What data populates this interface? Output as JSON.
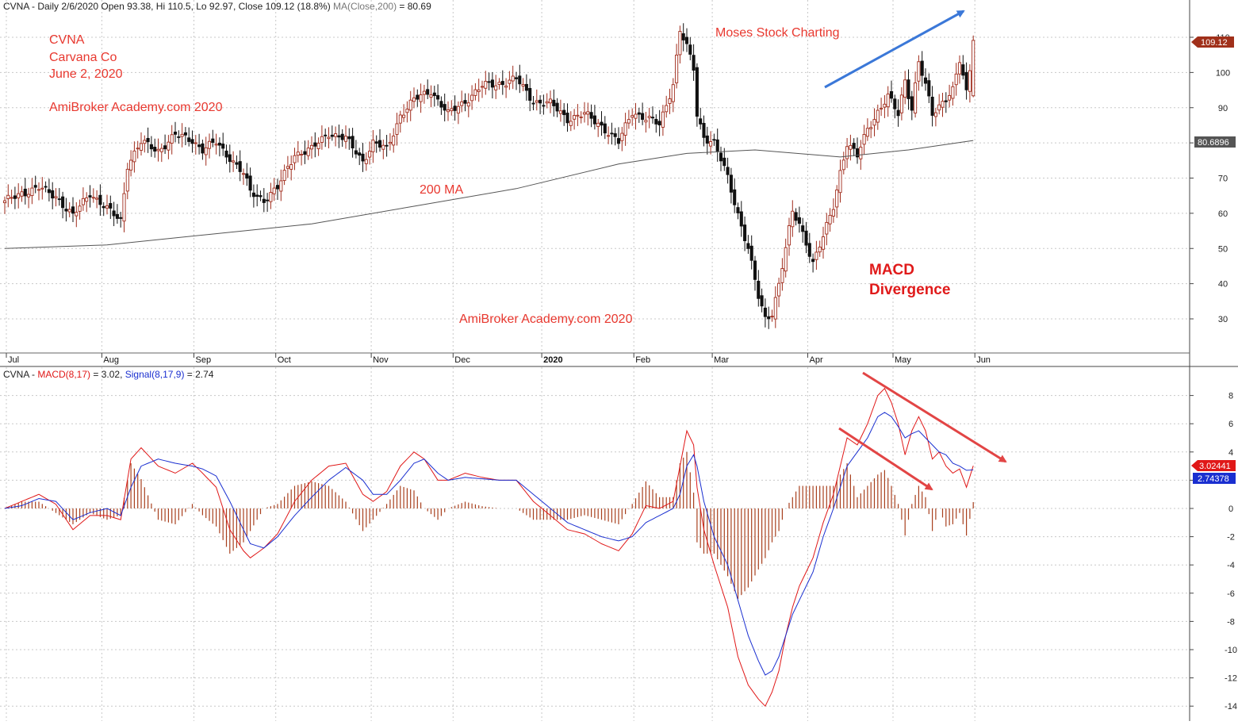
{
  "colors": {
    "up": "#a02c1c",
    "down": "#111111",
    "ma": "#555555",
    "macd": "#e01818",
    "signal": "#1a2fd0",
    "hist": "#a8401e",
    "annotation_red": "#e8382f",
    "arrow_blue": "#3b78d8",
    "arrow_red": "#e24545",
    "grid": "#c8c8c8"
  },
  "header": {
    "price_title": "CVNA - Daily 2/6/2020 Open 93.38, Hi 110.5, Lo 92.97, Close 109.12 (18.8%)",
    "ma_part": " MA(Close,200)",
    "ma_value": " = 80.69",
    "macd_prefix": "CVNA - ",
    "macd_label": "MACD(8,17)",
    "macd_value": " = 3.02, ",
    "signal_label": "Signal(8,17,9)",
    "signal_value": " = 2.74"
  },
  "annotations": {
    "ticker": "CVNA",
    "company": "Carvana Co",
    "date": "June 2, 2020",
    "site_top": "AmiBroker Academy.com  2020",
    "moses": "Moses Stock Charting",
    "ma_label": "200 MA",
    "macd_title": "MACD",
    "divergence": "Divergence",
    "site_bottom": "AmiBroker Academy.com  2020"
  },
  "price_badges": {
    "close": "109.12",
    "ma": "80.6896"
  },
  "macd_badges": {
    "macd": "3.02441",
    "signal": "2.74378"
  },
  "chart_data": [
    {
      "type": "candlestick",
      "title": "CVNA - Daily 2/6/2020",
      "x_months": [
        "Jul",
        "Aug",
        "Sep",
        "Oct",
        "Nov",
        "Dec",
        "2020",
        "Feb",
        "Mar",
        "Apr",
        "May",
        "Jun"
      ],
      "y_ticks": [
        30,
        40,
        50,
        60,
        70,
        80,
        90,
        100,
        110
      ],
      "ylim": [
        20.5,
        115.5
      ],
      "grid": true,
      "close_path": [
        [
          0,
          63
        ],
        [
          5,
          66
        ],
        [
          10,
          67
        ],
        [
          15,
          65
        ],
        [
          20,
          59
        ],
        [
          25,
          66
        ],
        [
          30,
          61
        ],
        [
          34,
          58
        ],
        [
          36,
          74
        ],
        [
          40,
          80
        ],
        [
          45,
          78
        ],
        [
          50,
          82
        ],
        [
          55,
          81
        ],
        [
          58,
          78
        ],
        [
          62,
          80
        ],
        [
          66,
          76
        ],
        [
          70,
          71
        ],
        [
          72,
          66
        ],
        [
          76,
          64
        ],
        [
          80,
          67
        ],
        [
          85,
          77
        ],
        [
          90,
          78
        ],
        [
          95,
          83
        ],
        [
          100,
          81
        ],
        [
          105,
          75
        ],
        [
          108,
          80
        ],
        [
          112,
          78
        ],
        [
          116,
          88
        ],
        [
          120,
          92
        ],
        [
          125,
          95
        ],
        [
          130,
          88
        ],
        [
          135,
          92
        ],
        [
          140,
          96
        ],
        [
          145,
          97
        ],
        [
          150,
          98
        ],
        [
          155,
          92
        ],
        [
          160,
          91
        ],
        [
          165,
          87
        ],
        [
          170,
          88
        ],
        [
          175,
          85
        ],
        [
          180,
          80
        ],
        [
          184,
          89
        ],
        [
          188,
          87
        ],
        [
          192,
          85
        ],
        [
          196,
          97
        ],
        [
          198,
          112
        ],
        [
          200,
          107
        ],
        [
          202,
          101
        ],
        [
          203,
          88
        ],
        [
          205,
          82
        ],
        [
          208,
          80
        ],
        [
          212,
          70
        ],
        [
          215,
          60
        ],
        [
          218,
          50
        ],
        [
          221,
          36
        ],
        [
          223,
          30
        ],
        [
          225,
          32
        ],
        [
          227,
          40
        ],
        [
          229,
          50
        ],
        [
          231,
          60
        ],
        [
          233,
          57
        ],
        [
          235,
          52
        ],
        [
          237,
          46
        ],
        [
          240,
          53
        ],
        [
          243,
          62
        ],
        [
          245,
          72
        ],
        [
          247,
          80
        ],
        [
          250,
          76
        ],
        [
          253,
          84
        ],
        [
          256,
          89
        ],
        [
          259,
          93
        ],
        [
          262,
          88
        ],
        [
          264,
          98
        ],
        [
          266,
          90
        ],
        [
          268,
          103
        ],
        [
          270,
          96
        ],
        [
          272,
          88
        ],
        [
          275,
          92
        ],
        [
          278,
          95
        ],
        [
          280,
          103
        ],
        [
          282,
          94
        ],
        [
          284,
          108
        ]
      ],
      "ma200_path": [
        [
          0,
          50
        ],
        [
          30,
          51
        ],
        [
          60,
          54
        ],
        [
          90,
          57
        ],
        [
          120,
          62
        ],
        [
          150,
          67
        ],
        [
          180,
          74
        ],
        [
          200,
          77
        ],
        [
          220,
          78
        ],
        [
          245,
          76
        ],
        [
          265,
          78
        ],
        [
          284,
          80.69
        ]
      ],
      "series": [
        {
          "name": "MA(Close,200)",
          "last": 80.69
        }
      ],
      "ohlc_last": {
        "date": "2/6/2020",
        "open": 93.38,
        "high": 110.5,
        "low": 92.97,
        "close": 109.12,
        "change_pct": 18.8
      }
    },
    {
      "type": "line",
      "title": "MACD(8,17)",
      "y_ticks": [
        -14,
        -12,
        -10,
        -8,
        -6,
        -4,
        -2,
        0,
        2,
        4,
        6,
        8
      ],
      "ylim": [
        -14.5,
        9.5
      ],
      "grid": true,
      "series": [
        {
          "name": "MACD(8,17)",
          "last": 3.02,
          "points": [
            [
              0,
              0
            ],
            [
              5,
              0.5
            ],
            [
              10,
              1.0
            ],
            [
              15,
              0.3
            ],
            [
              20,
              -1.5
            ],
            [
              25,
              -0.5
            ],
            [
              30,
              -0.5
            ],
            [
              34,
              -0.8
            ],
            [
              37,
              3.5
            ],
            [
              40,
              4.3
            ],
            [
              45,
              3.0
            ],
            [
              50,
              2.5
            ],
            [
              55,
              3.2
            ],
            [
              58,
              2.5
            ],
            [
              62,
              1.5
            ],
            [
              66,
              -1.5
            ],
            [
              70,
              -3.0
            ],
            [
              72,
              -3.5
            ],
            [
              76,
              -2.8
            ],
            [
              80,
              -1.8
            ],
            [
              85,
              0.5
            ],
            [
              90,
              2.0
            ],
            [
              95,
              3.0
            ],
            [
              100,
              3.2
            ],
            [
              105,
              1.0
            ],
            [
              108,
              0.5
            ],
            [
              112,
              1.2
            ],
            [
              116,
              3.0
            ],
            [
              120,
              4.0
            ],
            [
              123,
              3.5
            ],
            [
              127,
              2.0
            ],
            [
              130,
              2.0
            ],
            [
              135,
              2.5
            ],
            [
              140,
              2.2
            ],
            [
              145,
              2.0
            ],
            [
              150,
              2.0
            ],
            [
              155,
              0.5
            ],
            [
              160,
              -0.5
            ],
            [
              165,
              -1.5
            ],
            [
              170,
              -1.8
            ],
            [
              175,
              -2.5
            ],
            [
              180,
              -3.0
            ],
            [
              184,
              -1.8
            ],
            [
              188,
              0.2
            ],
            [
              192,
              0.0
            ],
            [
              196,
              0.5
            ],
            [
              198,
              3.0
            ],
            [
              200,
              5.5
            ],
            [
              202,
              4.5
            ],
            [
              203,
              1.5
            ],
            [
              205,
              -1.5
            ],
            [
              208,
              -4.0
            ],
            [
              212,
              -7.0
            ],
            [
              215,
              -10.5
            ],
            [
              218,
              -12.5
            ],
            [
              221,
              -13.5
            ],
            [
              223,
              -14.0
            ],
            [
              225,
              -13.0
            ],
            [
              227,
              -11.5
            ],
            [
              229,
              -9.0
            ],
            [
              231,
              -7.0
            ],
            [
              233,
              -5.5
            ],
            [
              235,
              -4.5
            ],
            [
              237,
              -3.5
            ],
            [
              240,
              -1.0
            ],
            [
              243,
              1.0
            ],
            [
              245,
              3.0
            ],
            [
              247,
              5.0
            ],
            [
              250,
              4.5
            ],
            [
              253,
              6.0
            ],
            [
              256,
              8.0
            ],
            [
              258,
              8.5
            ],
            [
              260,
              7.5
            ],
            [
              262,
              6.0
            ],
            [
              264,
              3.8
            ],
            [
              266,
              5.5
            ],
            [
              268,
              6.5
            ],
            [
              270,
              5.5
            ],
            [
              272,
              3.5
            ],
            [
              274,
              4.0
            ],
            [
              276,
              3.0
            ],
            [
              278,
              2.5
            ],
            [
              280,
              2.8
            ],
            [
              282,
              1.5
            ],
            [
              284,
              3.02
            ]
          ]
        },
        {
          "name": "Signal(8,17,9)",
          "last": 2.74,
          "points": [
            [
              0,
              0
            ],
            [
              5,
              0.2
            ],
            [
              10,
              0.7
            ],
            [
              15,
              0.5
            ],
            [
              20,
              -0.8
            ],
            [
              25,
              -0.3
            ],
            [
              30,
              0.0
            ],
            [
              34,
              -0.5
            ],
            [
              37,
              1.5
            ],
            [
              40,
              3.0
            ],
            [
              45,
              3.5
            ],
            [
              50,
              3.2
            ],
            [
              55,
              3.0
            ],
            [
              58,
              2.8
            ],
            [
              62,
              2.3
            ],
            [
              66,
              0.5
            ],
            [
              70,
              -1.5
            ],
            [
              72,
              -2.5
            ],
            [
              76,
              -2.8
            ],
            [
              80,
              -2.0
            ],
            [
              85,
              -0.5
            ],
            [
              90,
              0.8
            ],
            [
              95,
              2.0
            ],
            [
              100,
              2.9
            ],
            [
              105,
              2.0
            ],
            [
              108,
              1.0
            ],
            [
              112,
              1.0
            ],
            [
              116,
              2.0
            ],
            [
              120,
              3.2
            ],
            [
              123,
              3.5
            ],
            [
              127,
              2.5
            ],
            [
              130,
              2.0
            ],
            [
              135,
              2.2
            ],
            [
              140,
              2.1
            ],
            [
              145,
              2.0
            ],
            [
              150,
              2.0
            ],
            [
              155,
              1.0
            ],
            [
              160,
              0.0
            ],
            [
              165,
              -1.0
            ],
            [
              170,
              -1.5
            ],
            [
              175,
              -2.0
            ],
            [
              180,
              -2.3
            ],
            [
              184,
              -2.0
            ],
            [
              188,
              -1.0
            ],
            [
              192,
              -0.5
            ],
            [
              196,
              0.0
            ],
            [
              198,
              1.0
            ],
            [
              200,
              3.0
            ],
            [
              202,
              3.8
            ],
            [
              203,
              3.0
            ],
            [
              205,
              0.5
            ],
            [
              208,
              -2.0
            ],
            [
              212,
              -4.0
            ],
            [
              215,
              -6.5
            ],
            [
              218,
              -9.0
            ],
            [
              221,
              -10.8
            ],
            [
              223,
              -11.8
            ],
            [
              225,
              -11.5
            ],
            [
              227,
              -10.5
            ],
            [
              229,
              -9.0
            ],
            [
              231,
              -7.5
            ],
            [
              233,
              -6.5
            ],
            [
              235,
              -5.5
            ],
            [
              237,
              -4.5
            ],
            [
              240,
              -2.0
            ],
            [
              243,
              0.0
            ],
            [
              245,
              1.5
            ],
            [
              247,
              3.0
            ],
            [
              250,
              4.0
            ],
            [
              253,
              5.0
            ],
            [
              256,
              6.5
            ],
            [
              258,
              6.8
            ],
            [
              260,
              6.5
            ],
            [
              262,
              5.8
            ],
            [
              264,
              5.0
            ],
            [
              266,
              5.3
            ],
            [
              268,
              5.5
            ],
            [
              270,
              5.0
            ],
            [
              272,
              4.5
            ],
            [
              274,
              4.0
            ],
            [
              276,
              3.8
            ],
            [
              278,
              3.2
            ],
            [
              280,
              3.0
            ],
            [
              282,
              2.7
            ],
            [
              284,
              2.74
            ]
          ]
        }
      ],
      "histogram": "MACD minus Signal"
    }
  ]
}
